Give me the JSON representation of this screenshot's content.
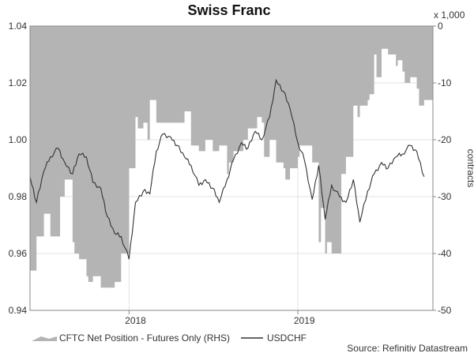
{
  "chart_data": {
    "type": "area",
    "title": "Swiss Franc",
    "source": "Source: Refinitiv Datastream",
    "x_categories": [
      "2018",
      "2019"
    ],
    "left_axis": {
      "ylim": [
        0.94,
        1.04
      ],
      "ticks": [
        "0.94",
        "0.96",
        "0.98",
        "1.00",
        "1.02",
        "1.04"
      ]
    },
    "right_axis": {
      "label": "contracts",
      "multiplier": "x 1,000",
      "ylim": [
        -50,
        0
      ],
      "ticks": [
        "-50",
        "-40",
        "-30",
        "-20",
        "-10",
        "0"
      ]
    },
    "grid": true,
    "legend_placement": "bottom",
    "series": [
      {
        "name": "CFTC Net Position - Futures Only (RHS)",
        "axis": "right",
        "color": "#b4b4b4",
        "x": [
          "2017-06",
          "2017-06-15",
          "2017-07",
          "2017-07-15",
          "2017-08",
          "2017-08-15",
          "2017-09",
          "2017-09-15",
          "2017-10",
          "2017-10-15",
          "2017-11",
          "2017-11-15",
          "2017-12",
          "2017-12-15",
          "2018-01",
          "2018-01-15",
          "2018-02",
          "2018-02-15",
          "2018-03",
          "2018-03-15",
          "2018-04",
          "2018-04-15",
          "2018-05",
          "2018-05-15",
          "2018-06",
          "2018-06-15",
          "2018-07",
          "2018-07-15",
          "2018-08",
          "2018-08-15",
          "2018-09",
          "2018-09-15",
          "2018-10",
          "2018-10-15",
          "2018-11",
          "2018-11-15",
          "2018-12",
          "2018-12-15",
          "2019-01",
          "2019-01-15",
          "2019-02",
          "2019-02-15",
          "2019-03",
          "2019-03-15",
          "2019-04",
          "2019-04-15",
          "2019-05",
          "2019-05-15",
          "2019-06",
          "2019-06-15",
          "2019-07",
          "2019-07-15",
          "2019-08",
          "2019-08-15",
          "2019-09",
          "2019-09-15",
          "2019-10"
        ],
        "values": [
          -43,
          -37,
          -33,
          -37,
          -37,
          -27,
          -38,
          -41,
          -44,
          -44,
          -46,
          -46,
          -45,
          -40,
          -25,
          -16,
          -17,
          -13,
          -17,
          -17,
          -17,
          -17,
          -15,
          -21,
          -22,
          -20,
          -22,
          -21,
          -26,
          -22,
          -22,
          -18,
          -18,
          -17,
          -20,
          -24,
          -25,
          -25,
          -23,
          -21,
          -24,
          -38,
          -40,
          -40,
          -40,
          -23,
          -14,
          -14,
          -13,
          -5,
          -4,
          -5,
          -7,
          -8,
          -9,
          -11,
          -13
        ],
        "x_extra": [
          "2017-08-05",
          "2017-09-05",
          "2017-10-05",
          "2018-01-20",
          "2018-02-10",
          "2018-08-05",
          "2018-09-05",
          "2018-10-05",
          "2018-10-20",
          "2018-12-05",
          "2019-01-05",
          "2019-02-20",
          "2019-03-05",
          "2019-04-05",
          "2019-05-10",
          "2019-06-05",
          "2019-06-20",
          "2019-07-05",
          "2019-08-05",
          "2019-08-20",
          "2019-09-20"
        ],
        "values_extra": [
          -30,
          -40,
          -45,
          -18,
          -20,
          -24,
          -20,
          -16,
          -23,
          -27,
          -21,
          -32,
          -38,
          -26,
          -16,
          -12,
          -9,
          -4,
          -6,
          -10,
          -14
        ]
      },
      {
        "name": "USDCHF",
        "axis": "left",
        "color": "#333333",
        "x": [
          "2017-06",
          "2017-06-15",
          "2017-07",
          "2017-07-15",
          "2017-08",
          "2017-08-15",
          "2017-09",
          "2017-09-15",
          "2017-10",
          "2017-10-15",
          "2017-11",
          "2017-11-15",
          "2017-12",
          "2017-12-15",
          "2018-01",
          "2018-01-15",
          "2018-02",
          "2018-02-15",
          "2018-03",
          "2018-03-15",
          "2018-04",
          "2018-04-15",
          "2018-05",
          "2018-05-15",
          "2018-06",
          "2018-06-15",
          "2018-07",
          "2018-07-15",
          "2018-08",
          "2018-08-15",
          "2018-09",
          "2018-09-15",
          "2018-10",
          "2018-10-15",
          "2018-11",
          "2018-11-15",
          "2018-12",
          "2018-12-15",
          "2019-01",
          "2019-01-15",
          "2019-02",
          "2019-02-15",
          "2019-03",
          "2019-03-15",
          "2019-04",
          "2019-04-15",
          "2019-05",
          "2019-05-15",
          "2019-06",
          "2019-06-15",
          "2019-07",
          "2019-07-15",
          "2019-08",
          "2019-08-15",
          "2019-09",
          "2019-09-15",
          "2019-10"
        ],
        "values": [
          0.987,
          0.978,
          0.989,
          0.994,
          0.997,
          0.992,
          0.988,
          0.995,
          0.994,
          0.985,
          0.983,
          0.973,
          0.967,
          0.966,
          0.958,
          0.978,
          0.982,
          0.981,
          0.996,
          1.002,
          1.001,
          0.998,
          0.994,
          0.991,
          0.984,
          0.986,
          0.983,
          0.978,
          0.986,
          0.993,
          0.999,
          0.997,
          1.003,
          1.0,
          1.008,
          1.021,
          1.017,
          1.011,
          0.999,
          0.993,
          0.979,
          0.991,
          0.972,
          0.984,
          0.98,
          0.978,
          0.986,
          0.971,
          0.982,
          0.988,
          0.992,
          0.99,
          0.994,
          0.995,
          0.998,
          0.996,
          0.987
        ]
      }
    ]
  }
}
